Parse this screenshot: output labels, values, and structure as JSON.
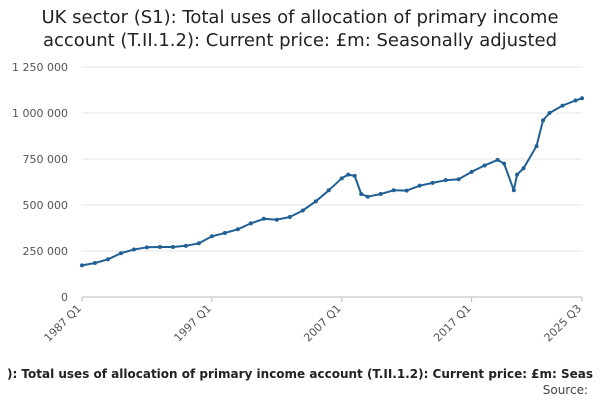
{
  "chart_data": {
    "type": "line",
    "title_lines": [
      "UK sector (S1): Total uses of allocation of primary income",
      "account (T.II.1.2): Current price: £m: Seasonally adjusted"
    ],
    "xlabel": "",
    "ylabel": "",
    "ylim": [
      0,
      1250000
    ],
    "y_ticks": [
      0,
      250000,
      500000,
      750000,
      1000000,
      1250000
    ],
    "y_tick_labels": [
      "0",
      "250 000",
      "500 000",
      "750 000",
      "1 000 000",
      "1 250 000"
    ],
    "x_range": [
      "1987 Q1",
      "2025 Q3"
    ],
    "x_ticks": [
      "1987 Q1",
      "1997 Q1",
      "2007 Q1",
      "2017 Q1",
      "2025 Q3"
    ],
    "grid": "horizontal",
    "line_color": "#206095",
    "series": [
      {
        "values": [
          [
            "1987 Q1",
            172000
          ],
          [
            "1988 Q1",
            185000
          ],
          [
            "1989 Q1",
            205000
          ],
          [
            "1990 Q1",
            238000
          ],
          [
            "1991 Q1",
            258000
          ],
          [
            "1992 Q1",
            270000
          ],
          [
            "1993 Q1",
            272000
          ],
          [
            "1994 Q1",
            272000
          ],
          [
            "1995 Q1",
            278000
          ],
          [
            "1996 Q1",
            292000
          ],
          [
            "1997 Q1",
            330000
          ],
          [
            "1998 Q1",
            348000
          ],
          [
            "1999 Q1",
            368000
          ],
          [
            "2000 Q1",
            400000
          ],
          [
            "2001 Q1",
            425000
          ],
          [
            "2002 Q1",
            420000
          ],
          [
            "2003 Q1",
            435000
          ],
          [
            "2004 Q1",
            470000
          ],
          [
            "2005 Q1",
            520000
          ],
          [
            "2006 Q1",
            580000
          ],
          [
            "2007 Q1",
            645000
          ],
          [
            "2007 Q3",
            665000
          ],
          [
            "2008 Q1",
            658000
          ],
          [
            "2008 Q3",
            560000
          ],
          [
            "2009 Q1",
            545000
          ],
          [
            "2010 Q1",
            560000
          ],
          [
            "2011 Q1",
            580000
          ],
          [
            "2012 Q1",
            578000
          ],
          [
            "2013 Q1",
            605000
          ],
          [
            "2014 Q1",
            620000
          ],
          [
            "2015 Q1",
            635000
          ],
          [
            "2016 Q1",
            640000
          ],
          [
            "2017 Q1",
            680000
          ],
          [
            "2018 Q1",
            715000
          ],
          [
            "2019 Q1",
            745000
          ],
          [
            "2019 Q3",
            725000
          ],
          [
            "2020 Q2",
            580000
          ],
          [
            "2020 Q3",
            665000
          ],
          [
            "2021 Q1",
            700000
          ],
          [
            "2022 Q1",
            820000
          ],
          [
            "2022 Q3",
            960000
          ],
          [
            "2023 Q1",
            1000000
          ],
          [
            "2024 Q1",
            1040000
          ],
          [
            "2025 Q1",
            1068000
          ],
          [
            "2025 Q3",
            1080000
          ]
        ]
      }
    ]
  },
  "footer": {
    "series_text": "): Total uses of allocation of primary income account (T.II.1.2): Current price: £m: Seas",
    "source_text": "Source:"
  }
}
